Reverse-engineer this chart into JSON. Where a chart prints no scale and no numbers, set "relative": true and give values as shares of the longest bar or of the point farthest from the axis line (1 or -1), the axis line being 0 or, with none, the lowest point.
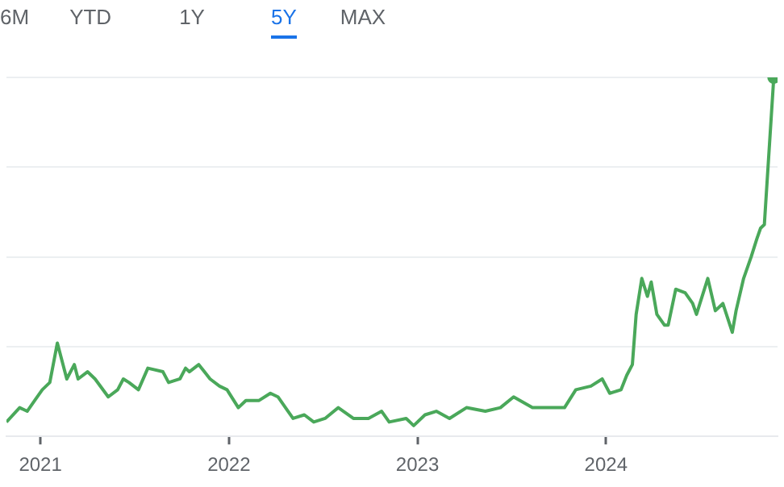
{
  "chart_data": {
    "type": "line",
    "relative": true,
    "grid": "y",
    "legend": false,
    "annotations": [
      "6M",
      "YTD",
      "1Y",
      "5Y",
      "MAX"
    ],
    "xlim": [
      2020.82,
      2024.91
    ],
    "xticks": [
      2021,
      2022,
      2023,
      2024
    ],
    "series": [
      {
        "color": "#4aa85a",
        "x": [
          2020.82,
          2020.89,
          2020.93,
          2020.97,
          2021.01,
          2021.05,
          2021.09,
          2021.14,
          2021.18,
          2021.2,
          2021.25,
          2021.29,
          2021.36,
          2021.41,
          2021.44,
          2021.47,
          2021.52,
          2021.57,
          2021.65,
          2021.68,
          2021.74,
          2021.77,
          2021.79,
          2021.84,
          2021.9,
          2021.95,
          2021.99,
          2022.05,
          2022.09,
          2022.16,
          2022.22,
          2022.26,
          2022.34,
          2022.4,
          2022.45,
          2022.51,
          2022.58,
          2022.66,
          2022.74,
          2022.81,
          2022.85,
          2022.94,
          2022.98,
          2023.04,
          2023.1,
          2023.17,
          2023.26,
          2023.36,
          2023.44,
          2023.51,
          2023.61,
          2023.72,
          2023.78,
          2023.84,
          2023.92,
          2023.98,
          2024.02,
          2024.08,
          2024.11,
          2024.14,
          2024.16,
          2024.19,
          2024.22,
          2024.24,
          2024.27,
          2024.31,
          2024.33,
          2024.37,
          2024.42,
          2024.46,
          2024.48,
          2024.54,
          2024.58,
          2024.62,
          2024.67,
          2024.69,
          2024.73,
          2024.77,
          2024.8,
          2024.82,
          2024.84,
          2024.89
        ],
        "values": [
          0.04,
          0.08,
          0.07,
          0.1,
          0.13,
          0.15,
          0.26,
          0.16,
          0.2,
          0.16,
          0.18,
          0.16,
          0.11,
          0.13,
          0.16,
          0.15,
          0.13,
          0.19,
          0.18,
          0.15,
          0.16,
          0.19,
          0.18,
          0.2,
          0.16,
          0.14,
          0.13,
          0.08,
          0.1,
          0.1,
          0.12,
          0.11,
          0.05,
          0.06,
          0.04,
          0.05,
          0.08,
          0.05,
          0.05,
          0.07,
          0.04,
          0.05,
          0.03,
          0.06,
          0.07,
          0.05,
          0.08,
          0.07,
          0.08,
          0.11,
          0.08,
          0.08,
          0.08,
          0.13,
          0.14,
          0.16,
          0.12,
          0.13,
          0.17,
          0.2,
          0.34,
          0.44,
          0.39,
          0.43,
          0.34,
          0.31,
          0.31,
          0.41,
          0.4,
          0.37,
          0.34,
          0.44,
          0.35,
          0.37,
          0.29,
          0.35,
          0.44,
          0.5,
          0.55,
          0.58,
          0.59,
          1
        ]
      }
    ]
  }
}
